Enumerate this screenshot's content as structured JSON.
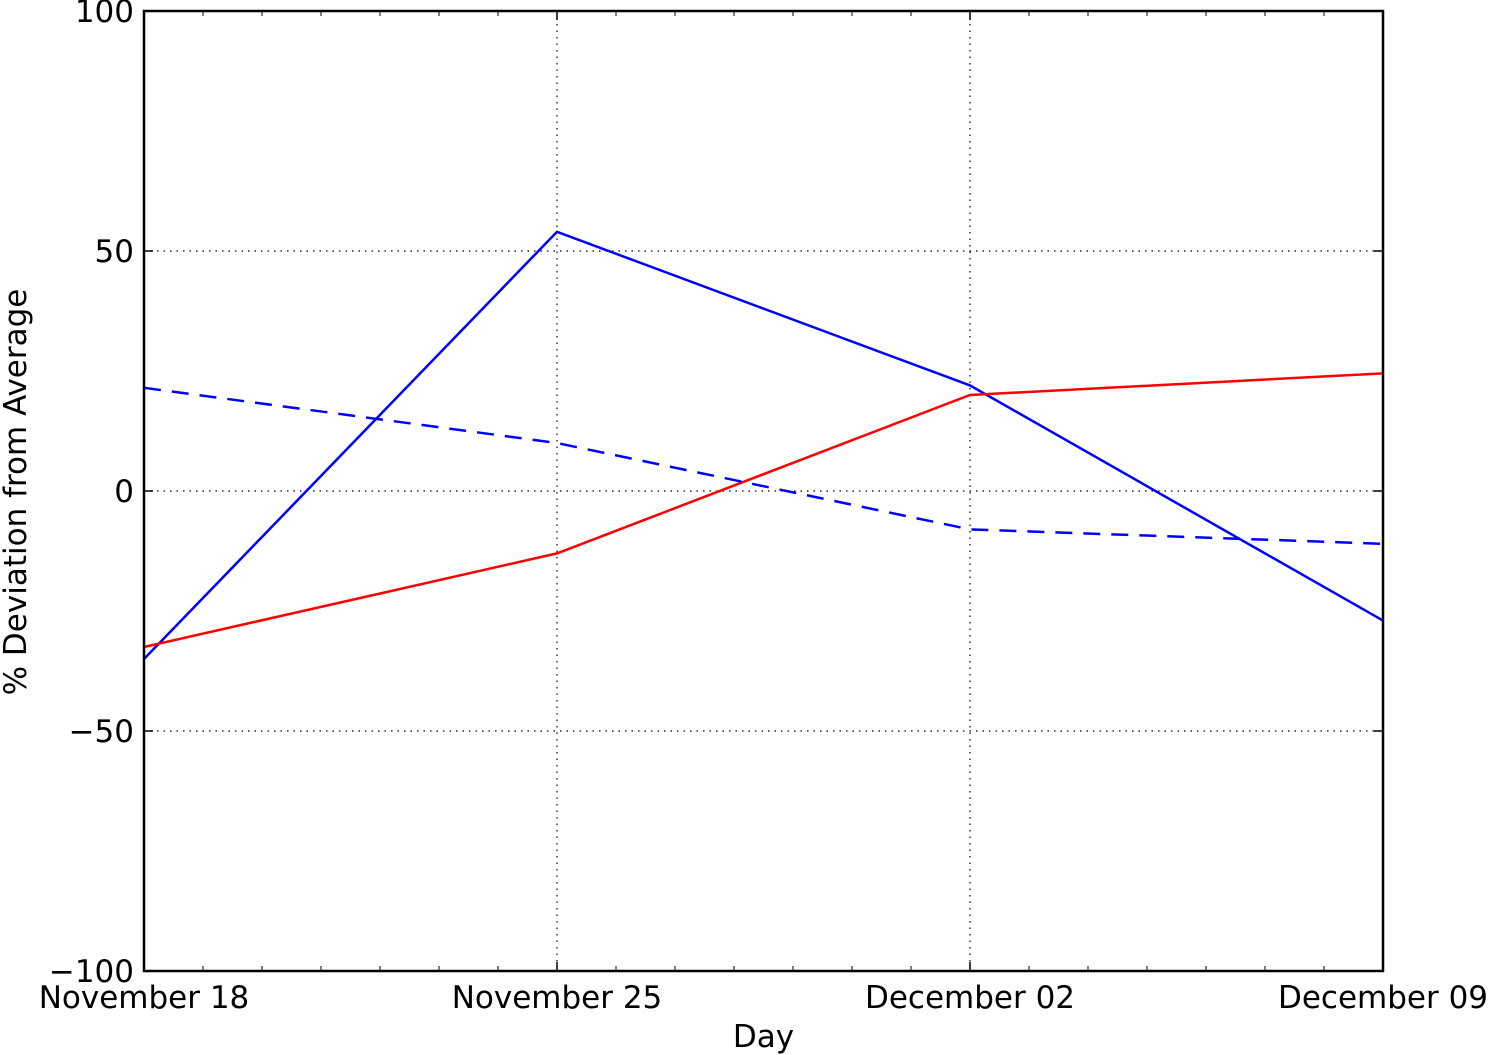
{
  "chart_data": {
    "type": "line",
    "title": "",
    "xlabel": "Day",
    "ylabel": "% Deviation from Average",
    "x": [
      "2012-11-18",
      "2012-11-25",
      "2012-12-02",
      "2012-12-09"
    ],
    "x_tick_labels": [
      "November 18",
      "November 25",
      "December 02",
      "December 09"
    ],
    "xlim": [
      "2012-11-18",
      "2012-12-09"
    ],
    "ylim": [
      -100,
      100
    ],
    "y_ticks": [
      -100,
      -50,
      0,
      50,
      100
    ],
    "y_tick_labels": [
      "−100",
      "−50",
      "0",
      "50",
      "100"
    ],
    "grid": true,
    "grid_style": "dotted",
    "legend": "none",
    "series": [
      {
        "values": [
          -35,
          54,
          22,
          -27
        ],
        "color": "#0000ff",
        "line_style": "solid"
      },
      {
        "values": [
          -32.5,
          -13,
          20,
          24.5
        ],
        "color": "#ff0000",
        "line_style": "solid"
      },
      {
        "values": [
          21.5,
          10,
          -8,
          -11
        ],
        "color": "#0000ff",
        "line_style": "dashed"
      }
    ]
  }
}
